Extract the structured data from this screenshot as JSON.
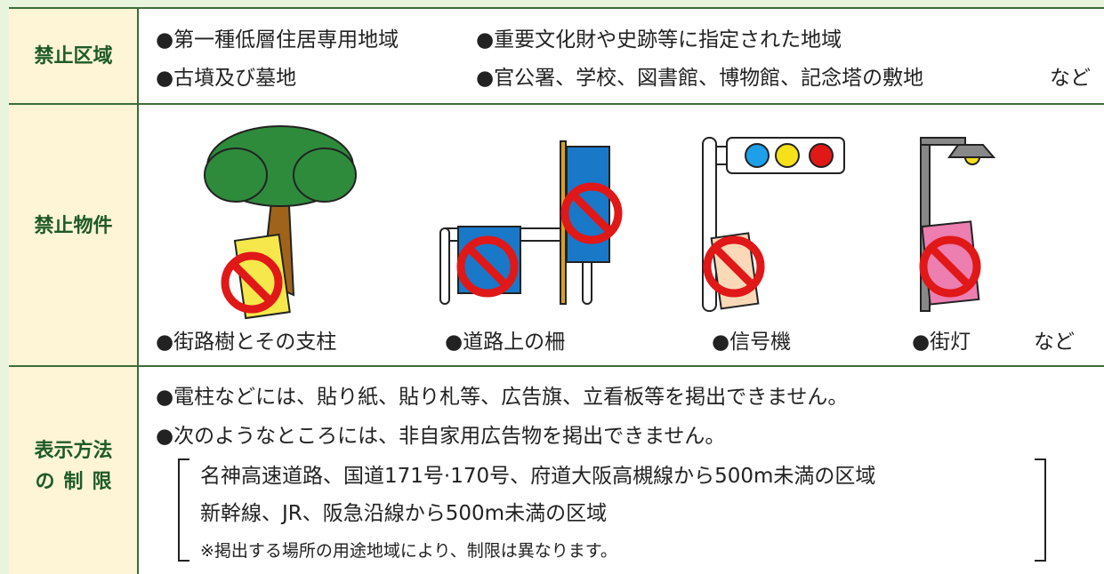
{
  "table": {
    "rows": [
      {
        "header": [
          "禁止区域"
        ],
        "items": [
          "●第一種低層住居専用地域",
          "●重要文化財や史跡等に指定された地域",
          "●古墳及び墓地",
          "●官公署、学校、図書館、博物館、記念塔の敷地",
          "など"
        ]
      },
      {
        "header": [
          "禁止物件"
        ],
        "items": [
          "●街路樹とその支柱",
          "●道路上の柵",
          "●信号機",
          "●街灯",
          "など"
        ]
      },
      {
        "header": [
          "表示方法",
          "の制限"
        ],
        "items": [
          "●電柱などには、貼り紙、貼り札等、広告旗、立看板等を掲出できません。",
          "●次のようなところには、非自家用広告物を掲出できません。"
        ],
        "bracket": [
          "名神高速道路、国道171号·170号、府道大阪高槻線から500m未満の区域",
          "新幹線、JR、阪急沿線から500m未満の区域",
          "※掲出する場所の用途地域により、制限は異なります。"
        ]
      }
    ]
  }
}
